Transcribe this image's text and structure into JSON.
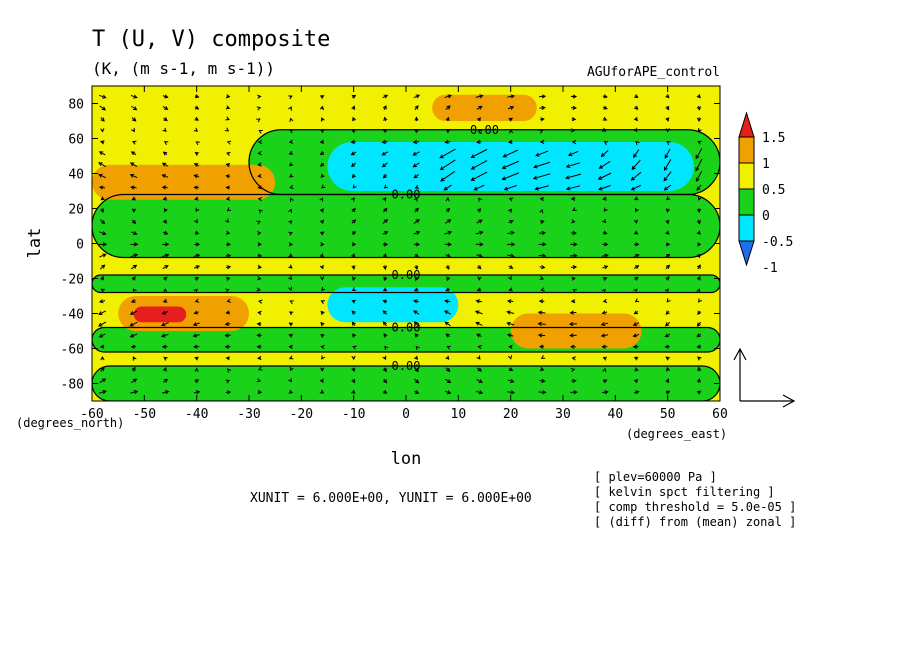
{
  "chart_data": {
    "type": "heatmap",
    "title": "T (U, V) composite",
    "subtitle": "(K, (m s-1, m s-1))",
    "experiment": "AGUforAPE_control",
    "xlabel": "lon",
    "ylabel": "lat",
    "xunit_label": "(degrees_east)",
    "yunit_label": "(degrees_north)",
    "xlim": [
      -60,
      60
    ],
    "ylim": [
      -90,
      90
    ],
    "xticks": [
      -60,
      -50,
      -40,
      -30,
      -20,
      -10,
      0,
      10,
      20,
      30,
      40,
      50,
      60
    ],
    "yticks": [
      -80,
      -60,
      -40,
      -20,
      0,
      20,
      40,
      60,
      80
    ],
    "contour_label": "0.00",
    "colorbar": {
      "levels": [
        -1,
        -0.5,
        0,
        0.5,
        1,
        1.5
      ],
      "tick_labels": [
        "-1",
        "-0.5",
        "0",
        "0.5",
        "1",
        "1.5"
      ],
      "colors": [
        "#1e6ef0",
        "#00e6ff",
        "#19d219",
        "#f0f000",
        "#f0a000",
        "#e61e1e"
      ]
    },
    "vector_units": {
      "xunit": "XUNIT = 6.000E+00",
      "yunit": "YUNIT = 6.000E+00",
      "line": "XUNIT = 6.000E+00, YUNIT = 6.000E+00"
    },
    "annotations": [
      "[ plev=60000 Pa ]",
      "[ kelvin spct filtering ]",
      "[ comp threshold = 5.0e-05 ]",
      "[ (diff) from (mean) zonal ]"
    ],
    "field_regions": [
      {
        "level": 0.25,
        "lon": [
          -60,
          60
        ],
        "lat": [
          -90,
          90
        ]
      },
      {
        "level": -0.25,
        "lon": [
          -60,
          60
        ],
        "lat": [
          -90,
          -70
        ]
      },
      {
        "level": -0.25,
        "lon": [
          -60,
          60
        ],
        "lat": [
          -62,
          -48
        ]
      },
      {
        "level": -0.25,
        "lon": [
          -60,
          60
        ],
        "lat": [
          -28,
          -18
        ]
      },
      {
        "level": -0.25,
        "lon": [
          -60,
          60
        ],
        "lat": [
          -8,
          28
        ]
      },
      {
        "level": -0.25,
        "lon": [
          -30,
          60
        ],
        "lat": [
          28,
          65
        ]
      },
      {
        "level": -0.75,
        "lon": [
          -15,
          55
        ],
        "lat": [
          30,
          58
        ]
      },
      {
        "level": -0.75,
        "lon": [
          -15,
          10
        ],
        "lat": [
          -45,
          -25
        ]
      },
      {
        "level": 0.75,
        "lon": [
          -60,
          -25
        ],
        "lat": [
          25,
          45
        ]
      },
      {
        "level": 0.75,
        "lon": [
          -55,
          -30
        ],
        "lat": [
          -50,
          -30
        ]
      },
      {
        "level": 0.75,
        "lon": [
          20,
          45
        ],
        "lat": [
          -60,
          -40
        ]
      },
      {
        "level": 0.75,
        "lon": [
          5,
          25
        ],
        "lat": [
          70,
          85
        ]
      },
      {
        "level": 1.25,
        "lon": [
          -52,
          -42
        ],
        "lat": [
          -45,
          -36
        ]
      }
    ],
    "wind_pattern": "mixed vectors, strongest poleward-eastward flow near 40 to 50 degrees north between 10 and 60 degrees east"
  }
}
